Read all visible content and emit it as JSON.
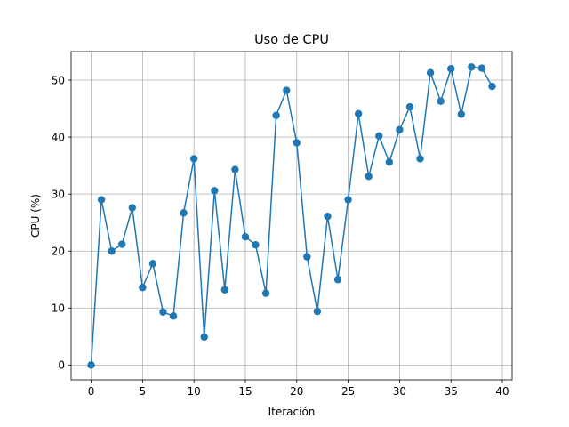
{
  "chart_data": {
    "type": "line",
    "title": "Uso de CPU",
    "xlabel": "Iteración",
    "ylabel": "CPU (%)",
    "xlim": [
      -1.95,
      40.95
    ],
    "ylim": [
      -2.6,
      55.0
    ],
    "x_ticks": [
      0,
      5,
      10,
      15,
      20,
      25,
      30,
      35,
      40
    ],
    "y_ticks": [
      0,
      10,
      20,
      30,
      40,
      50
    ],
    "grid": true,
    "legend": "none",
    "color": "#1f77b4",
    "series": [
      {
        "x": [
          0,
          1,
          2,
          3,
          4,
          5,
          6,
          7,
          8,
          9,
          10,
          11,
          12,
          13,
          14,
          15,
          16,
          17,
          18,
          19,
          20,
          21,
          22,
          23,
          24,
          25,
          26,
          27,
          28,
          29,
          30,
          31,
          32,
          33,
          34,
          35,
          36,
          37,
          38,
          39
        ],
        "values": [
          0.0,
          29.0,
          20.0,
          21.2,
          27.6,
          13.6,
          17.8,
          9.3,
          8.6,
          26.7,
          36.2,
          4.9,
          30.6,
          13.2,
          34.3,
          22.5,
          21.1,
          12.6,
          43.8,
          48.2,
          39.0,
          19.0,
          9.4,
          26.1,
          15.0,
          29.0,
          44.1,
          33.1,
          40.2,
          35.6,
          41.3,
          45.3,
          36.2,
          51.3,
          46.3,
          52.0,
          44.0,
          52.3,
          52.1,
          48.9
        ]
      }
    ]
  }
}
